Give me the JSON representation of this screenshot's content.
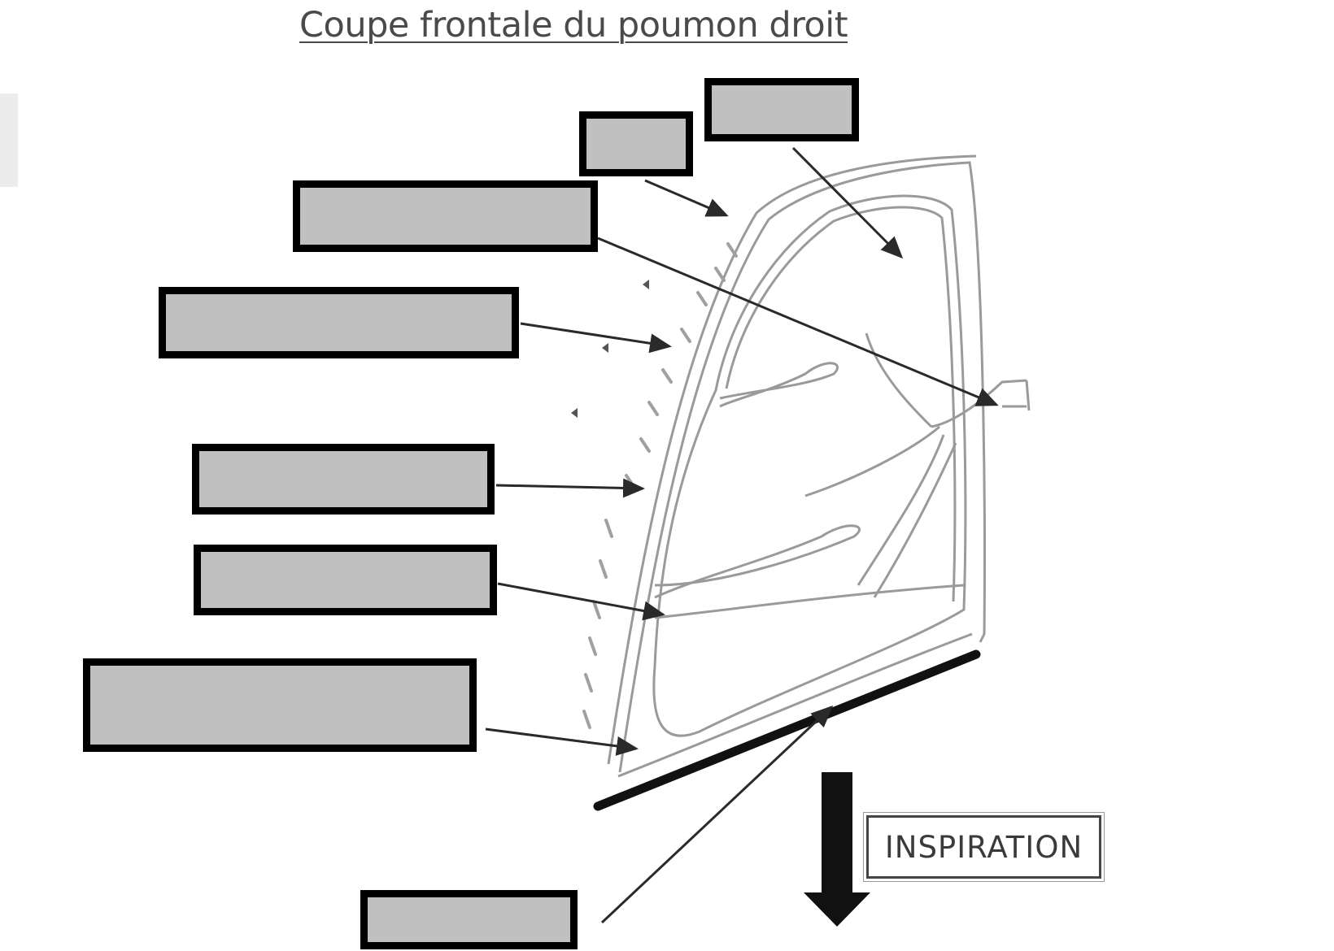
{
  "title": "Coupe frontale du poumon droit",
  "inspiration_label": "INSPIRATION",
  "label_boxes": [
    {
      "id": "box-1",
      "text": ""
    },
    {
      "id": "box-2",
      "text": ""
    },
    {
      "id": "box-3",
      "text": ""
    },
    {
      "id": "box-4",
      "text": ""
    },
    {
      "id": "box-5",
      "text": ""
    },
    {
      "id": "box-6",
      "text": ""
    },
    {
      "id": "box-7",
      "text": ""
    },
    {
      "id": "box-8",
      "text": ""
    }
  ],
  "colors": {
    "box_fill": "#c0c0c0",
    "box_border": "#000000",
    "lines": "#2a2a2a"
  }
}
